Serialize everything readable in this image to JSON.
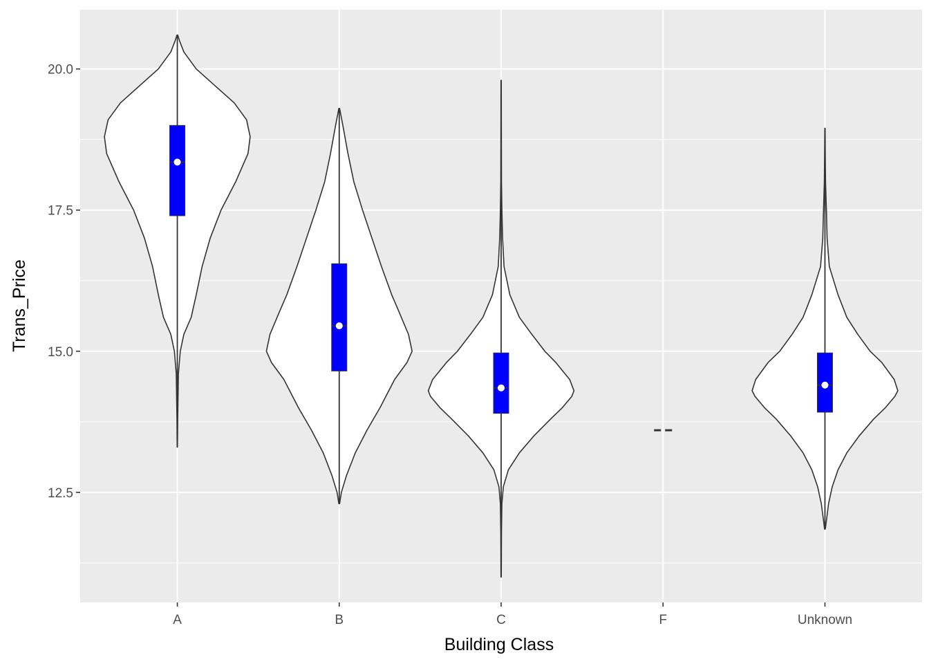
{
  "chart_data": {
    "type": "violin",
    "xlabel": "Building Class",
    "ylabel": "Trans_Price",
    "categories": [
      "A",
      "B",
      "C",
      "F",
      "Unknown"
    ],
    "ylim": [
      10.55,
      21.05
    ],
    "y_ticks": [
      12.5,
      15.0,
      17.5,
      20.0
    ],
    "y_tick_labels": [
      "12.5",
      "15.0",
      "17.5",
      "20.0"
    ],
    "grid": true,
    "legend": "none",
    "colors": {
      "panel": "#ebebeb",
      "grid": "#ffffff",
      "violin_fill": "#ffffff",
      "violin_outline": "#333333",
      "box_fill": "#0000ff",
      "median_point": "#ffffff"
    },
    "violins": [
      {
        "category": "A",
        "whisker": [
          13.3,
          20.6
        ],
        "box": {
          "q1": 17.4,
          "median": 18.35,
          "q3": 19.0
        },
        "profile": [
          [
            13.3,
            0.002
          ],
          [
            13.8,
            0.005
          ],
          [
            14.2,
            0.01
          ],
          [
            14.6,
            0.015
          ],
          [
            15.0,
            0.04
          ],
          [
            15.3,
            0.09
          ],
          [
            15.6,
            0.19
          ],
          [
            16.0,
            0.26
          ],
          [
            16.5,
            0.34
          ],
          [
            17.0,
            0.45
          ],
          [
            17.5,
            0.6
          ],
          [
            18.0,
            0.8
          ],
          [
            18.5,
            0.97
          ],
          [
            18.8,
            1.0
          ],
          [
            19.1,
            0.95
          ],
          [
            19.4,
            0.78
          ],
          [
            19.7,
            0.52
          ],
          [
            20.0,
            0.26
          ],
          [
            20.3,
            0.09
          ],
          [
            20.5,
            0.03
          ],
          [
            20.6,
            0.005
          ]
        ]
      },
      {
        "category": "B",
        "whisker": [
          12.3,
          19.3
        ],
        "box": {
          "q1": 14.65,
          "median": 15.45,
          "q3": 16.55
        },
        "profile": [
          [
            12.3,
            0.005
          ],
          [
            12.5,
            0.03
          ],
          [
            12.8,
            0.1
          ],
          [
            13.2,
            0.22
          ],
          [
            13.6,
            0.38
          ],
          [
            14.0,
            0.56
          ],
          [
            14.5,
            0.76
          ],
          [
            14.8,
            0.93
          ],
          [
            15.0,
            1.0
          ],
          [
            15.3,
            0.95
          ],
          [
            15.7,
            0.82
          ],
          [
            16.0,
            0.72
          ],
          [
            16.5,
            0.58
          ],
          [
            17.0,
            0.45
          ],
          [
            17.5,
            0.32
          ],
          [
            18.0,
            0.2
          ],
          [
            18.5,
            0.12
          ],
          [
            19.0,
            0.05
          ],
          [
            19.3,
            0.005
          ]
        ]
      },
      {
        "category": "C",
        "whisker": [
          11.0,
          19.8
        ],
        "box": {
          "q1": 13.9,
          "median": 14.35,
          "q3": 14.97
        },
        "profile": [
          [
            11.0,
            0.002
          ],
          [
            11.8,
            0.005
          ],
          [
            12.3,
            0.01
          ],
          [
            12.6,
            0.03
          ],
          [
            12.9,
            0.1
          ],
          [
            13.2,
            0.25
          ],
          [
            13.5,
            0.45
          ],
          [
            13.8,
            0.68
          ],
          [
            14.0,
            0.84
          ],
          [
            14.2,
            0.97
          ],
          [
            14.3,
            1.0
          ],
          [
            14.5,
            0.94
          ],
          [
            14.8,
            0.75
          ],
          [
            15.0,
            0.6
          ],
          [
            15.3,
            0.42
          ],
          [
            15.6,
            0.25
          ],
          [
            16.0,
            0.12
          ],
          [
            16.5,
            0.04
          ],
          [
            17.0,
            0.02
          ],
          [
            17.5,
            0.01
          ],
          [
            18.0,
            0.005
          ],
          [
            19.0,
            0.003
          ],
          [
            19.8,
            0.002
          ]
        ]
      },
      {
        "category": "F",
        "whisker": [
          13.6,
          13.6
        ],
        "box": null,
        "profile": [
          [
            13.6,
            0.05
          ]
        ]
      },
      {
        "category": "Unknown",
        "whisker": [
          11.85,
          18.95
        ],
        "box": {
          "q1": 13.92,
          "median": 14.4,
          "q3": 14.97
        },
        "profile": [
          [
            11.85,
            0.005
          ],
          [
            12.0,
            0.02
          ],
          [
            12.3,
            0.05
          ],
          [
            12.6,
            0.1
          ],
          [
            12.9,
            0.18
          ],
          [
            13.2,
            0.3
          ],
          [
            13.5,
            0.47
          ],
          [
            13.8,
            0.67
          ],
          [
            14.0,
            0.83
          ],
          [
            14.2,
            0.96
          ],
          [
            14.3,
            1.0
          ],
          [
            14.5,
            0.95
          ],
          [
            14.8,
            0.78
          ],
          [
            15.0,
            0.62
          ],
          [
            15.3,
            0.45
          ],
          [
            15.6,
            0.3
          ],
          [
            16.0,
            0.18
          ],
          [
            16.5,
            0.06
          ],
          [
            17.0,
            0.03
          ],
          [
            17.5,
            0.02
          ],
          [
            18.0,
            0.008
          ],
          [
            18.5,
            0.004
          ],
          [
            18.95,
            0.002
          ]
        ]
      }
    ]
  }
}
